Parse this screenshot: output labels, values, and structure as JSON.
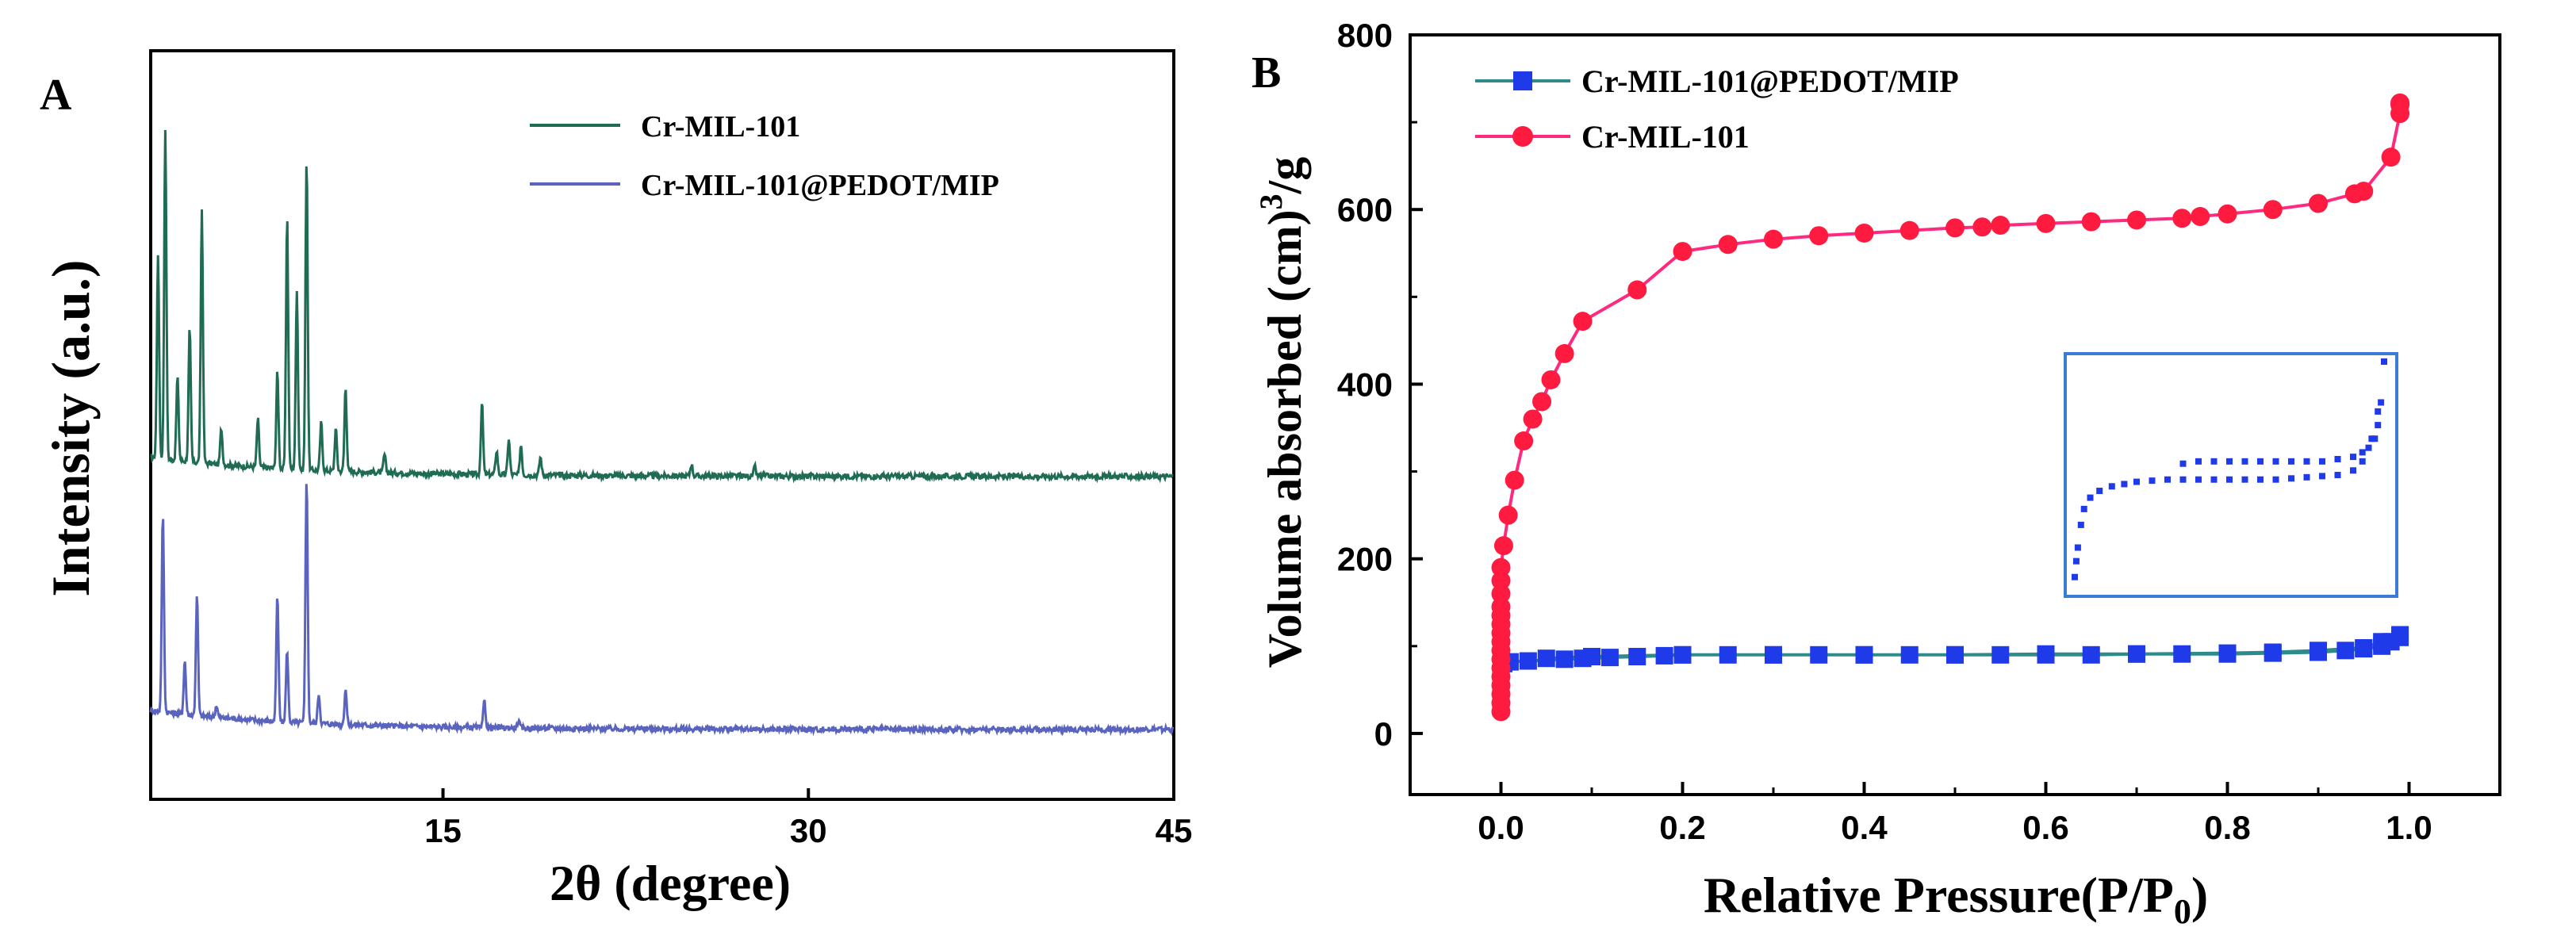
{
  "chart_data": [
    {
      "panel": "A",
      "type": "line",
      "title": "",
      "xlabel": "2θ (degree)",
      "ylabel": "Intensity (a.u.)",
      "xlim": [
        3,
        45
      ],
      "ylim": [
        0,
        100
      ],
      "x_ticks": [
        15,
        30,
        45
      ],
      "y_ticks": [],
      "legend": "top-right",
      "series": [
        {
          "name": "Cr-MIL-101",
          "color": "#1f6b54",
          "baseline": 42,
          "peaks": [
            {
              "x": 3.3,
              "h": 34
            },
            {
              "x": 3.6,
              "h": 55
            },
            {
              "x": 4.1,
              "h": 14
            },
            {
              "x": 4.6,
              "h": 22
            },
            {
              "x": 5.1,
              "h": 42
            },
            {
              "x": 5.9,
              "h": 6
            },
            {
              "x": 7.4,
              "h": 8
            },
            {
              "x": 8.2,
              "h": 16
            },
            {
              "x": 8.6,
              "h": 42
            },
            {
              "x": 9.0,
              "h": 30
            },
            {
              "x": 9.4,
              "h": 52
            },
            {
              "x": 10.0,
              "h": 8
            },
            {
              "x": 10.6,
              "h": 7
            },
            {
              "x": 11.0,
              "h": 14
            },
            {
              "x": 12.6,
              "h": 3
            },
            {
              "x": 16.6,
              "h": 12
            },
            {
              "x": 17.2,
              "h": 4
            },
            {
              "x": 17.7,
              "h": 6
            },
            {
              "x": 18.2,
              "h": 5
            },
            {
              "x": 19.0,
              "h": 3
            },
            {
              "x": 25.2,
              "h": 2
            },
            {
              "x": 27.8,
              "h": 1.5
            }
          ]
        },
        {
          "name": "Cr-MIL-101@PEDOT/MIP",
          "color": "#5a64bf",
          "baseline": 0,
          "peaks": [
            {
              "x": 3.5,
              "h": 33
            },
            {
              "x": 4.4,
              "h": 9
            },
            {
              "x": 4.9,
              "h": 20
            },
            {
              "x": 5.7,
              "h": 2
            },
            {
              "x": 8.2,
              "h": 21
            },
            {
              "x": 8.6,
              "h": 12
            },
            {
              "x": 9.4,
              "h": 41
            },
            {
              "x": 9.9,
              "h": 5
            },
            {
              "x": 11.0,
              "h": 6
            },
            {
              "x": 16.7,
              "h": 4.5
            },
            {
              "x": 18.1,
              "h": 1.2
            }
          ]
        }
      ]
    },
    {
      "panel": "B",
      "type": "line",
      "title": "",
      "xlabel": "Relative Pressure(P/P",
      "xlabel_sub": "0",
      "xlabel_end": ")",
      "ylabel": "Volume absorbed (cm)",
      "ylabel_sup": "3",
      "ylabel_end": "/g",
      "xlim": [
        -0.1,
        1.1
      ],
      "ylim": [
        -70,
        800
      ],
      "x_ticks": [
        "0.0",
        "0.2",
        "0.4",
        "0.6",
        "0.8",
        "1.0"
      ],
      "y_ticks": [
        "0",
        "200",
        "400",
        "600",
        "800"
      ],
      "legend": "top-left",
      "series": [
        {
          "name": "Cr-MIL-101@PEDOT/MIP",
          "color": "#1f3ae8",
          "line_color": "#2e8b8b",
          "marker": "square",
          "x": [
            0.0,
            0.0,
            0.0,
            0.0,
            0.003,
            0.01,
            0.03,
            0.07,
            0.09,
            0.12,
            0.15,
            0.18,
            0.2,
            0.25,
            0.3,
            0.35,
            0.4,
            0.45,
            0.5,
            0.55,
            0.6,
            0.65,
            0.7,
            0.75,
            0.8,
            0.85,
            0.9,
            0.93,
            0.95,
            0.97,
            0.98,
            0.99,
            0.99,
            0.97,
            0.95,
            0.9,
            0.85,
            0.8,
            0.7,
            0.6,
            0.5,
            0.4,
            0.3,
            0.2,
            0.1,
            0.05
          ],
          "y": [
            30,
            40,
            55,
            70,
            80,
            82,
            83,
            85,
            86,
            87,
            88,
            89,
            90,
            90,
            90,
            90,
            90,
            90,
            90,
            90,
            90,
            90,
            91,
            91,
            91,
            92,
            93,
            95,
            97,
            100,
            105,
            113,
            110,
            105,
            98,
            95,
            93,
            92,
            91,
            91,
            90,
            90,
            90,
            90,
            88,
            86
          ]
        },
        {
          "name": "Cr-MIL-101",
          "color": "#ff1a40",
          "line_color": "#ff2a80",
          "marker": "circle",
          "x": [
            0.0,
            0.0,
            0.0,
            0.0,
            0.0,
            0.0,
            0.0,
            0.0,
            0.0,
            0.0,
            0.0,
            0.0,
            0.0,
            0.0,
            0.0,
            0.0,
            0.003,
            0.008,
            0.015,
            0.025,
            0.035,
            0.045,
            0.055,
            0.07,
            0.09,
            0.15,
            0.2,
            0.25,
            0.3,
            0.35,
            0.4,
            0.45,
            0.5,
            0.53,
            0.55,
            0.6,
            0.65,
            0.7,
            0.75,
            0.77,
            0.8,
            0.85,
            0.9,
            0.94,
            0.95,
            0.98,
            0.99,
            0.99,
            0.99
          ],
          "y": [
            25,
            35,
            45,
            55,
            65,
            75,
            85,
            95,
            105,
            115,
            125,
            135,
            145,
            160,
            175,
            190,
            215,
            250,
            290,
            335,
            360,
            380,
            405,
            435,
            472,
            508,
            552,
            560,
            566,
            570,
            573,
            576,
            579,
            580,
            582,
            584,
            586,
            588,
            590,
            592,
            595,
            600,
            607,
            618,
            621,
            660,
            710,
            720,
            722
          ]
        }
      ],
      "inset": {
        "upper_x": [
          0.35,
          0.4,
          0.45,
          0.5,
          0.55,
          0.6,
          0.65,
          0.7,
          0.75,
          0.8,
          0.85,
          0.9,
          0.93,
          0.95,
          0.97,
          0.98,
          0.99
        ],
        "upper_y": [
          0.55,
          0.56,
          0.56,
          0.56,
          0.56,
          0.56,
          0.56,
          0.56,
          0.56,
          0.56,
          0.57,
          0.58,
          0.6,
          0.62,
          0.66,
          0.72,
          0.82
        ],
        "lower_x": [
          0.0,
          0.005,
          0.01,
          0.02,
          0.03,
          0.05,
          0.08,
          0.12,
          0.16,
          0.2,
          0.25,
          0.3,
          0.35,
          0.4,
          0.45,
          0.5,
          0.55,
          0.6,
          0.65,
          0.7,
          0.75,
          0.8,
          0.85,
          0.9,
          0.93,
          0.96,
          0.98,
          1.0
        ],
        "lower_y": [
          0.05,
          0.12,
          0.18,
          0.28,
          0.35,
          0.4,
          0.43,
          0.45,
          0.46,
          0.47,
          0.475,
          0.48,
          0.48,
          0.48,
          0.48,
          0.48,
          0.48,
          0.48,
          0.48,
          0.485,
          0.49,
          0.495,
          0.5,
          0.52,
          0.56,
          0.66,
          0.78,
          1.0
        ]
      }
    }
  ]
}
